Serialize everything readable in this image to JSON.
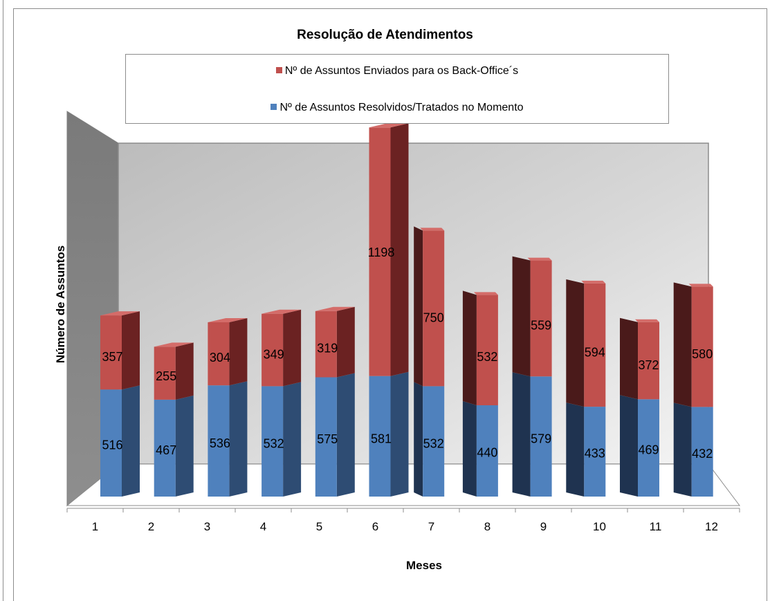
{
  "chart_data": {
    "type": "bar",
    "stacked": true,
    "three_d": true,
    "title": "Resolução de Atendimentos",
    "xlabel": "Meses",
    "ylabel": "Número de Assuntos",
    "categories": [
      "1",
      "2",
      "3",
      "4",
      "5",
      "6",
      "7",
      "8",
      "9",
      "10",
      "11",
      "12"
    ],
    "series": [
      {
        "name": "Nº de Assuntos Resolvidos/Tratados no Momento",
        "color": "#4f81bd",
        "values": [
          516,
          467,
          536,
          532,
          575,
          581,
          532,
          440,
          579,
          433,
          469,
          432
        ]
      },
      {
        "name": "Nº de Assuntos Enviados para os Back-Office´s",
        "color": "#c0504d",
        "values": [
          357,
          255,
          304,
          349,
          319,
          1198,
          750,
          532,
          559,
          594,
          372,
          580
        ]
      }
    ],
    "legend_order": [
      1,
      0
    ],
    "legend_position": "top",
    "ylim": [
      0,
      1800
    ],
    "grid": false
  }
}
